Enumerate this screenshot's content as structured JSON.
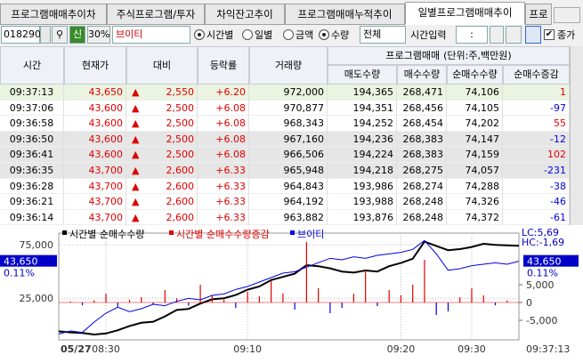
{
  "tabs": [
    "프로그램매매추이차",
    "주식프로그램/투자",
    "차익잔고추이",
    "프로그램매매누적추이",
    "일별프로그램매매추이",
    "프로"
  ],
  "toolbar": {
    "code": "018290",
    "new": "신",
    "ratio": "30%",
    "name": "브이티",
    "period_options": [
      "시간별",
      "일별"
    ],
    "unit_options": [
      "금액",
      "수량"
    ],
    "select": "전체",
    "time_label": "시간입력",
    "time_value": ":",
    "close_label": "종가"
  },
  "table": {
    "headers": [
      "시간",
      "현재가",
      "대비",
      "등락률",
      "거래량"
    ],
    "group": "프로그램매매",
    "unit": "(단위:주,백만원)",
    "sub_headers": [
      "매도수량",
      "매수수량",
      "순매수수량",
      "순매수증감"
    ],
    "rows": [
      [
        "09:37:13",
        "43,650",
        "2,550",
        "+6.20",
        "972,000",
        "194,365",
        "268,471",
        "74,106",
        "1"
      ],
      [
        "09:37:06",
        "43,600",
        "2,500",
        "+6.08",
        "970,877",
        "194,351",
        "268,456",
        "74,105",
        "-97"
      ],
      [
        "09:36:58",
        "43,600",
        "2,500",
        "+6.08",
        "968,343",
        "194,252",
        "268,454",
        "74,202",
        "55"
      ],
      [
        "09:36:50",
        "43,600",
        "2,500",
        "+6.08",
        "967,160",
        "194,236",
        "268,383",
        "74,147",
        "-12"
      ],
      [
        "09:36:41",
        "43,600",
        "2,500",
        "+6.08",
        "966,506",
        "194,224",
        "268,383",
        "74,159",
        "102"
      ],
      [
        "09:36:35",
        "43,700",
        "2,600",
        "+6.33",
        "965,948",
        "194,218",
        "268,275",
        "74,057",
        "-231"
      ],
      [
        "09:36:28",
        "43,700",
        "2,600",
        "+6.33",
        "964,843",
        "193,986",
        "268,274",
        "74,288",
        "-38"
      ],
      [
        "09:36:21",
        "43,700",
        "2,600",
        "+6.33",
        "964,192",
        "193,988",
        "268,248",
        "74,326",
        "-46"
      ],
      [
        "09:36:14",
        "43,700",
        "2,600",
        "+6.33",
        "963,882",
        "193,876",
        "268,248",
        "74,372",
        "-61"
      ]
    ]
  },
  "chart": {
    "type": "line",
    "date": "05/27",
    "current_time": "09:37:13",
    "lc": "LC:5,69",
    "hc": "HC:-1,69",
    "price_label": "43,650",
    "rate_label": "0.11%",
    "xlim": [
      0,
      39
    ],
    "xticks": [
      {
        "value": 4,
        "label": "08:30"
      },
      {
        "value": 16,
        "label": "09:10"
      },
      {
        "value": 29,
        "label": "09:20"
      },
      {
        "value": 35,
        "label": "09:30"
      }
    ],
    "ylim": [
      -14000,
      86000
    ],
    "yticks": [
      {
        "value": 25000,
        "label": "25,000"
      },
      {
        "value": 75000,
        "label": "75,000"
      }
    ],
    "y2lim": [
      -10500,
      19500
    ],
    "y2ticks": [
      {
        "value": 5000,
        "label": "5,000"
      },
      {
        "value": 0,
        "label": "0"
      },
      {
        "value": -5000,
        "label": "-5,000"
      }
    ],
    "y3lim": [
      41000,
      44600
    ],
    "series": [
      {
        "name": "시간별 순매수수량",
        "type": "line",
        "axis": "y",
        "color": "#000000",
        "values": [
          -6000,
          -7000,
          -7500,
          -9000,
          -8000,
          -5000,
          -1000,
          2000,
          3000,
          8000,
          14000,
          15000,
          20000,
          24000,
          25000,
          28000,
          33000,
          36000,
          42000,
          45000,
          48000,
          56000,
          55000,
          53000,
          50000,
          49000,
          51000,
          50000,
          55000,
          58000,
          62000,
          78000,
          74000,
          70000,
          71000,
          73000,
          76000,
          75000,
          74500,
          74106
        ]
      },
      {
        "name": "시간별 순매수수량증감",
        "type": "bar",
        "axis": "y2",
        "color": "#e00000",
        "neg_color": "#0000e0",
        "values": [
          0,
          300,
          -800,
          600,
          2500,
          -1200,
          800,
          1500,
          -600,
          3500,
          1200,
          -900,
          5000,
          2000,
          800,
          -1500,
          3000,
          1800,
          6000,
          2500,
          -2000,
          17000,
          4000,
          -3000,
          -1500,
          2500,
          9000,
          -1000,
          3500,
          2000,
          5000,
          12000,
          -3500,
          -2500,
          1500,
          4000,
          2000,
          -800,
          600,
          1
        ]
      },
      {
        "name": "브이티",
        "type": "line",
        "axis": "y3",
        "color": "#0000e0",
        "values": [
          41200,
          41300,
          41250,
          41600,
          41900,
          42100,
          41950,
          42050,
          42200,
          42150,
          42300,
          42400,
          42350,
          42500,
          42550,
          42700,
          42800,
          42950,
          43100,
          43250,
          43300,
          43450,
          43600,
          43750,
          43700,
          43800,
          43750,
          43850,
          43900,
          43950,
          44050,
          44350,
          43900,
          43350,
          43400,
          43500,
          43550,
          43600,
          43550,
          43650
        ]
      }
    ]
  }
}
